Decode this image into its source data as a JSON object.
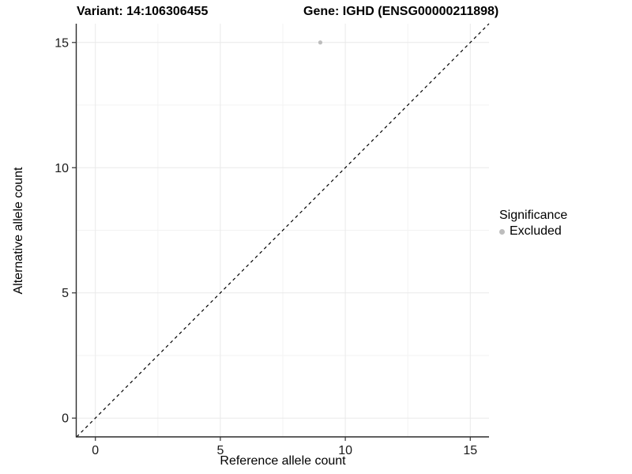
{
  "titles": {
    "left": "Variant: 14:106306455",
    "right": "Gene: IGHD (ENSG00000211898)"
  },
  "chart_data": {
    "type": "scatter",
    "title_left": "Variant: 14:106306455",
    "title_right": "Gene: IGHD (ENSG00000211898)",
    "xlabel": "Reference allele count",
    "ylabel": "Alternative allele count",
    "xlim": [
      -0.75,
      15.75
    ],
    "ylim": [
      -0.75,
      15.75
    ],
    "xticks": [
      0,
      5,
      10,
      15
    ],
    "yticks": [
      0,
      5,
      10,
      15
    ],
    "xtick_labels": [
      "0",
      "5",
      "10",
      "15"
    ],
    "ytick_labels": [
      "0",
      "5",
      "10",
      "15"
    ],
    "minor_xticks": [
      2.5,
      7.5,
      12.5
    ],
    "minor_yticks": [
      2.5,
      7.5,
      12.5
    ],
    "grid": true,
    "identity_line": {
      "style": "dashed",
      "from": [
        -0.75,
        -0.75
      ],
      "to": [
        15.75,
        15.75
      ],
      "color": "#000000"
    },
    "series": [
      {
        "name": "Excluded",
        "points": [
          {
            "x": 9,
            "y": 15
          }
        ],
        "color": "#bdbdbd"
      }
    ],
    "legend": {
      "position": "right",
      "title": "Significance",
      "entries": [
        {
          "label": "Excluded",
          "color": "#bdbdbd"
        }
      ]
    },
    "colors": {
      "background": "#ffffff",
      "grid_major": "#e9e9e9",
      "grid_minor": "#f3f3f3",
      "axis_line": "#2b2b2b",
      "tick": "#333333",
      "tick_label": "#1a1a1a",
      "point": "#bdbdbd"
    }
  }
}
